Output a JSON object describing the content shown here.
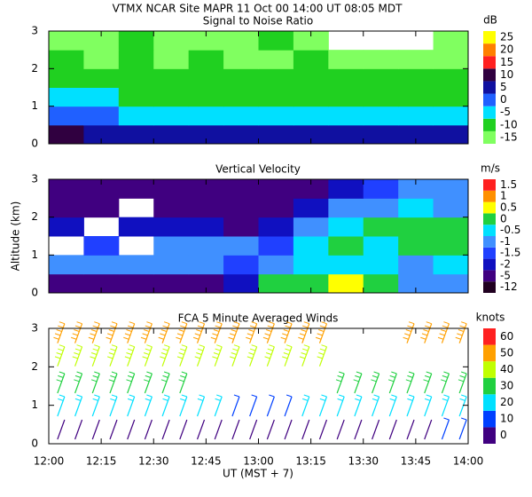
{
  "header": "VTMX   NCAR Site   MAPR 11 Oct 00   14:00 UT   08:05   MDT",
  "x_tick_labels": [
    "12:00",
    "12:15",
    "12:30",
    "12:45",
    "13:00",
    "13:15",
    "13:30",
    "13:45",
    "14:00"
  ],
  "x_label": "UT  (MST + 7)",
  "chart_data": [
    {
      "type": "heatmap",
      "title": "Signal to Noise Ratio",
      "unit": "dB",
      "ylim": [
        0,
        3
      ],
      "yticks": [
        0,
        1,
        2,
        3
      ],
      "y": [
        0.25,
        0.75,
        1.25,
        1.75,
        2.25,
        2.75
      ],
      "values": [
        [
          10,
          5,
          5,
          5,
          5,
          5,
          5,
          5,
          5,
          5,
          5,
          5
        ],
        [
          0,
          -2,
          -3,
          -3,
          -3,
          -4,
          -4,
          -5,
          -5,
          -5,
          -5,
          -4
        ],
        [
          -6,
          -7,
          -8,
          -8,
          -8,
          -8,
          -8,
          -9,
          -9,
          -9,
          -9,
          -8
        ],
        [
          -12,
          -12,
          -10,
          -12,
          -12,
          -12,
          -12,
          -12,
          -12,
          -12,
          -12,
          -12
        ],
        [
          -12,
          -14,
          -12,
          -14,
          -12,
          -14,
          -14,
          -12,
          -14,
          -15,
          -15,
          -14
        ],
        [
          -14,
          -14,
          -12,
          -14,
          -14,
          -14,
          -12,
          -14,
          null,
          null,
          null,
          -14
        ]
      ],
      "colorbar": {
        "ticks": [
          -15,
          -10,
          -5,
          0,
          5,
          10,
          15,
          20,
          25
        ],
        "colors": [
          "#80ff60",
          "#20d020",
          "#00e0ff",
          "#2060ff",
          "#1010a0",
          "#300040",
          "#ff2020",
          "#ff8000",
          "#ffff00"
        ]
      }
    },
    {
      "type": "heatmap",
      "title": "Vertical Velocity",
      "unit": "m/s",
      "y_label": "Altitude (km)",
      "ylim": [
        0,
        3
      ],
      "yticks": [
        0,
        1,
        2,
        3
      ],
      "y": [
        0.25,
        0.75,
        1.25,
        1.75,
        2.25,
        2.75
      ],
      "values": [
        [
          -5,
          -5,
          -5,
          -5,
          -5,
          -2,
          0,
          0,
          0.5,
          0,
          -1,
          -1
        ],
        [
          -1,
          -1,
          -1,
          -1,
          -1,
          -1.5,
          -1,
          -0.5,
          -0.5,
          -0.5,
          -1,
          -0.5
        ],
        [
          null,
          -1.5,
          null,
          -1,
          -1,
          -1,
          -1.5,
          -0.5,
          0,
          -0.5,
          0,
          0
        ],
        [
          -2,
          null,
          -2,
          -2,
          -2,
          -5,
          -2,
          -1,
          -0.5,
          0,
          0,
          0
        ],
        [
          -5,
          -5,
          null,
          -5,
          -5,
          -5,
          -5,
          -2,
          -1,
          -1,
          -0.5,
          -1
        ],
        [
          -5,
          -5,
          -5,
          -5,
          -5,
          -5,
          -5,
          -5,
          -2,
          -1.5,
          -1,
          -1
        ]
      ],
      "colorbar": {
        "ticks": [
          -12,
          -5,
          -2,
          -1.5,
          -1,
          -0.5,
          0,
          0.5,
          1,
          1.5
        ],
        "colors": [
          "#200020",
          "#400080",
          "#1010c0",
          "#2040ff",
          "#4090ff",
          "#00e0ff",
          "#20d040",
          "#ffff00",
          "#ff9000",
          "#ff2020"
        ]
      }
    },
    {
      "type": "barbs",
      "title": "FCA 5 Minute Averaged Winds",
      "unit": "knots",
      "ylim": [
        0,
        3
      ],
      "yticks": [
        0,
        1,
        2,
        3
      ],
      "y": [
        0.3,
        0.9,
        1.5,
        2.2,
        2.8
      ],
      "values": [
        [
          5,
          5,
          5,
          5,
          5,
          5,
          5,
          5,
          5,
          5,
          5,
          10
        ],
        [
          20,
          20,
          20,
          20,
          20,
          15,
          15,
          20,
          25,
          25,
          25,
          25
        ],
        [
          35,
          35,
          35,
          35,
          null,
          null,
          null,
          null,
          30,
          30,
          30,
          30
        ],
        [
          45,
          45,
          45,
          45,
          45,
          45,
          45,
          45,
          null,
          null,
          null,
          null
        ],
        [
          55,
          55,
          55,
          55,
          55,
          55,
          55,
          55,
          null,
          null,
          55,
          55
        ]
      ],
      "colorbar": {
        "ticks": [
          0,
          10,
          20,
          30,
          40,
          50,
          60
        ],
        "colors": [
          "#400080",
          "#0040ff",
          "#00e0ff",
          "#20d040",
          "#c0ff00",
          "#ffa000",
          "#ff2020"
        ]
      }
    }
  ]
}
